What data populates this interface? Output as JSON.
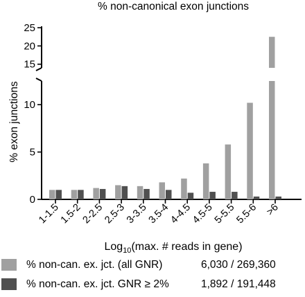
{
  "chart_data": {
    "type": "bar",
    "title": "% non-canonical exon junctions",
    "ylabel": "% exon junctions",
    "xlabel": {
      "prefix": "Log",
      "subscript": "10",
      "suffix": "(max. # reads in gene)"
    },
    "categories": [
      "1-1.5",
      "1.5-2",
      "2-2.5",
      "2.5-3",
      "3-3.5",
      "3.5-4",
      "4-4.5",
      "4.5-5",
      "5-5.5",
      "5.5-6",
      ">6"
    ],
    "series": [
      {
        "name": "% non-can. ex. jct. (all GNR)",
        "count": "6,030 / 269,360",
        "color": "#a0a0a0",
        "values": [
          1.0,
          1.0,
          1.2,
          1.5,
          1.4,
          1.8,
          2.2,
          3.8,
          5.8,
          10.2,
          22.5
        ]
      },
      {
        "name": "% non-can. ex. jct. GNR ≥ 2%",
        "count": "1,892 / 191,448",
        "color": "#505050",
        "values": [
          1.0,
          1.0,
          1.1,
          1.4,
          1.1,
          1.0,
          0.7,
          0.8,
          0.8,
          0.3,
          0.3
        ]
      }
    ],
    "y_axis": {
      "broken": true,
      "lower_range": [
        0,
        12.5
      ],
      "lower_ticks": [
        0,
        5,
        10
      ],
      "upper_range": [
        14,
        25
      ],
      "upper_ticks": [
        15,
        20,
        25
      ]
    }
  }
}
